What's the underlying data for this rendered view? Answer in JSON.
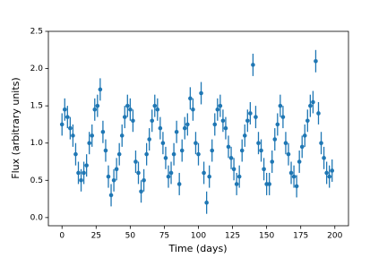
{
  "chart_data": {
    "type": "errorbar",
    "xlabel": "Time (days)",
    "ylabel": "Flux (arbitrary units)",
    "xlim": [
      -10,
      210
    ],
    "ylim": [
      -0.11,
      2.5
    ],
    "xticks": [
      0,
      25,
      50,
      75,
      100,
      125,
      150,
      175,
      200
    ],
    "yticks": [
      {
        "value": 0,
        "label": "0.0"
      },
      {
        "value": 0.5,
        "label": "0.5"
      },
      {
        "value": 1,
        "label": "1.0"
      },
      {
        "value": 1.5,
        "label": "1.5"
      },
      {
        "value": 2,
        "label": "2.0"
      },
      {
        "value": 2.5,
        "label": "2.5"
      }
    ],
    "series": [
      {
        "color": "#1f77b4",
        "error": 0.15,
        "x": [
          0,
          2,
          4,
          6,
          8,
          10,
          12,
          14,
          16,
          18,
          20,
          22,
          24,
          26,
          28,
          30,
          32,
          34,
          36,
          38,
          40,
          42,
          44,
          46,
          48,
          50,
          52,
          54,
          56,
          58,
          60,
          62,
          64,
          66,
          68,
          70,
          72,
          74,
          76,
          78,
          80,
          82,
          84,
          86,
          88,
          90,
          92,
          94,
          96,
          98,
          100,
          102,
          104,
          106,
          108,
          110,
          112,
          114,
          116,
          118,
          120,
          122,
          124,
          126,
          128,
          130,
          132,
          134,
          136,
          138,
          140,
          142,
          144,
          146,
          148,
          150,
          152,
          154,
          156,
          158,
          160,
          162,
          164,
          166,
          168,
          170,
          172,
          174,
          176,
          178,
          180,
          182,
          184,
          186,
          188,
          190,
          192,
          194,
          196,
          198
        ],
        "values": [
          1.25,
          1.45,
          1.35,
          1.2,
          1.1,
          0.85,
          0.6,
          0.5,
          0.6,
          0.7,
          1.0,
          1.1,
          1.45,
          1.5,
          1.72,
          1.15,
          0.9,
          0.55,
          0.3,
          0.5,
          0.65,
          0.85,
          1.1,
          1.35,
          1.5,
          1.45,
          1.3,
          0.75,
          0.6,
          0.35,
          0.5,
          0.85,
          1.05,
          1.3,
          1.5,
          1.45,
          1.2,
          1.0,
          0.8,
          0.55,
          0.6,
          0.85,
          1.15,
          0.45,
          0.9,
          1.2,
          1.25,
          1.6,
          1.45,
          1.0,
          0.85,
          1.67,
          0.6,
          0.2,
          0.55,
          0.9,
          1.25,
          1.45,
          1.5,
          1.3,
          1.2,
          0.95,
          0.8,
          0.65,
          0.45,
          0.55,
          0.9,
          1.1,
          1.3,
          1.4,
          2.05,
          1.35,
          1.0,
          0.9,
          0.65,
          0.45,
          0.45,
          0.75,
          1.05,
          1.25,
          1.5,
          1.35,
          1.0,
          0.85,
          0.6,
          0.55,
          0.42,
          0.75,
          0.95,
          1.1,
          1.3,
          1.5,
          1.55,
          2.1,
          1.4,
          1.0,
          0.8,
          0.6,
          0.55,
          0.63
        ]
      }
    ]
  }
}
